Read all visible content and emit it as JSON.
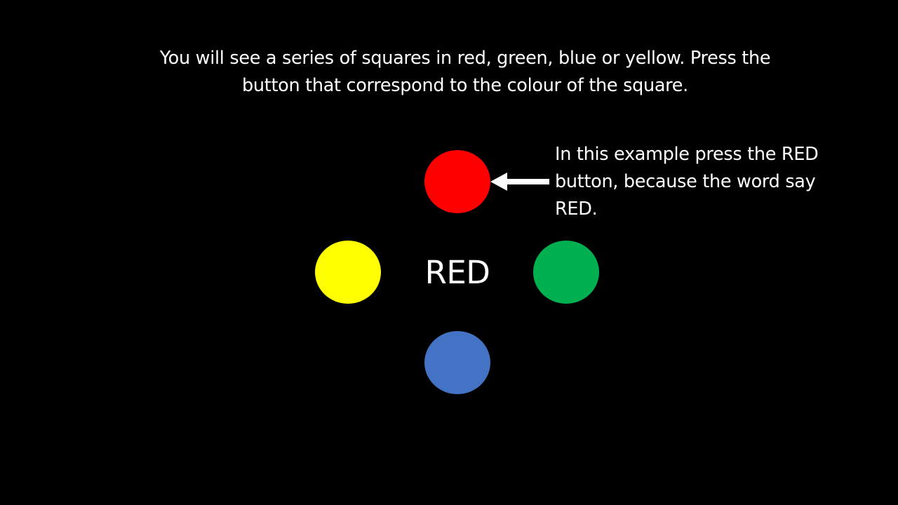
{
  "instructions": {
    "line1": "You will see a series of squares in red, green, blue or yellow. Press the",
    "line2": "button that correspond to the colour of the square."
  },
  "example": {
    "word": "RED",
    "note_line1": "In this example press the RED",
    "note_line2": "button, because the word say",
    "note_line3": "RED."
  },
  "buttons": [
    {
      "name": "red-button",
      "color": "#ff0000"
    },
    {
      "name": "yellow-button",
      "color": "#ffff00"
    },
    {
      "name": "green-button",
      "color": "#00b050"
    },
    {
      "name": "blue-button",
      "color": "#4472c4"
    }
  ],
  "colors": {
    "background": "#000000",
    "text": "#ffffff",
    "arrow": "#ffffff"
  },
  "icons": {
    "arrow": "left-arrow-icon"
  }
}
